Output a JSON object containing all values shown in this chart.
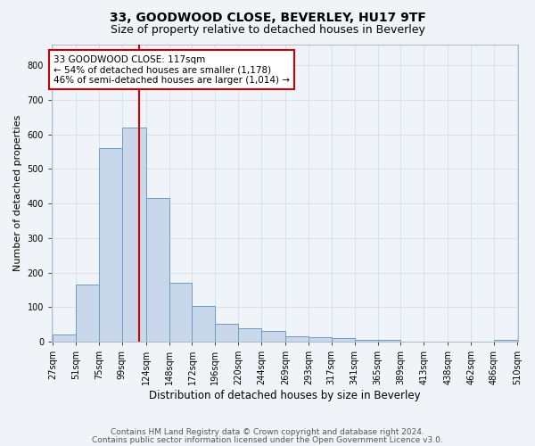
{
  "title": "33, GOODWOOD CLOSE, BEVERLEY, HU17 9TF",
  "subtitle": "Size of property relative to detached houses in Beverley",
  "xlabel": "Distribution of detached houses by size in Beverley",
  "ylabel": "Number of detached properties",
  "bar_edges": [
    27,
    51,
    75,
    99,
    124,
    148,
    172,
    196,
    220,
    244,
    269,
    293,
    317,
    341,
    365,
    389,
    413,
    438,
    462,
    486,
    510
  ],
  "bar_heights": [
    20,
    165,
    560,
    620,
    415,
    170,
    103,
    52,
    40,
    30,
    15,
    12,
    10,
    5,
    4,
    1,
    1,
    0,
    0,
    5
  ],
  "bar_color": "#c8d8ea",
  "bar_edgecolor": "#6b9dc2",
  "property_size": 117,
  "vline_color": "#cc0000",
  "annotation_line1": "33 GOODWOOD CLOSE: 117sqm",
  "annotation_line2": "← 54% of detached houses are smaller (1,178)",
  "annotation_line3": "46% of semi-detached houses are larger (1,014) →",
  "annotation_box_edgecolor": "#cc0000",
  "annotation_box_facecolor": "#ffffff",
  "ylim": [
    0,
    860
  ],
  "yticks": [
    0,
    100,
    200,
    300,
    400,
    500,
    600,
    700,
    800
  ],
  "grid_color": "#d8e0ec",
  "background_color": "#f0f4f8",
  "plot_background": "#f0f4f8",
  "footer_line1": "Contains HM Land Registry data © Crown copyright and database right 2024.",
  "footer_line2": "Contains public sector information licensed under the Open Government Licence v3.0.",
  "title_fontsize": 10,
  "subtitle_fontsize": 9,
  "xlabel_fontsize": 8.5,
  "ylabel_fontsize": 8,
  "tick_fontsize": 7,
  "annotation_fontsize": 7.5,
  "footer_fontsize": 6.5
}
